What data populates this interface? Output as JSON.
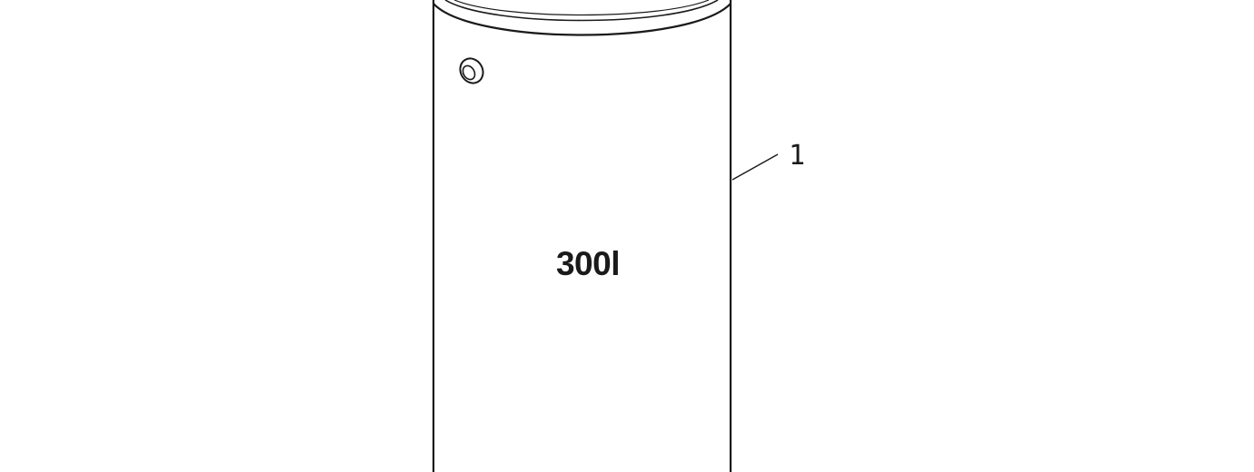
{
  "drawing": {
    "part_label": "300l",
    "callout_number": "1"
  },
  "colors": {
    "line": "#1a1a1a",
    "background": "#ffffff"
  },
  "icons": {
    "fitting": "pipe-fitting-icon"
  }
}
